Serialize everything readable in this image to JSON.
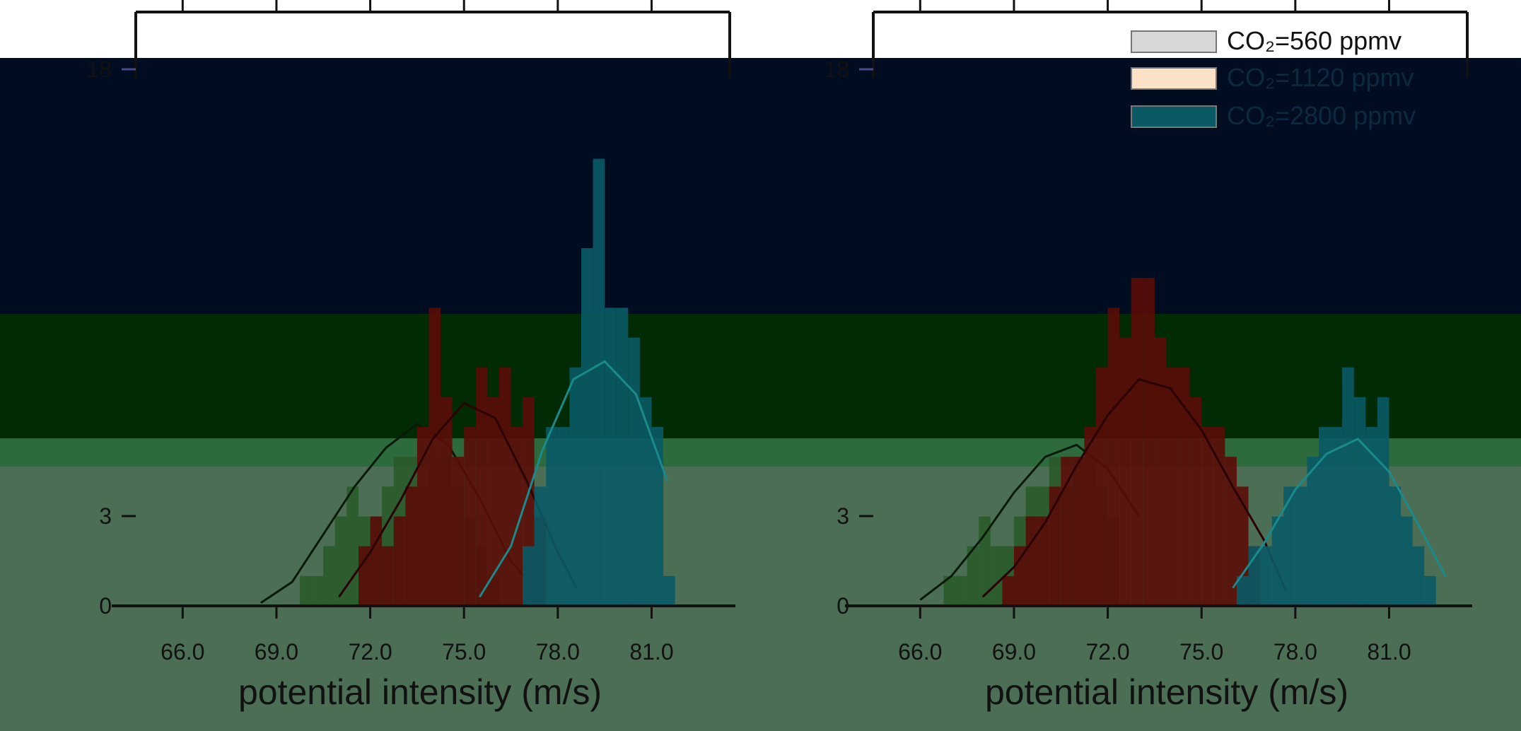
{
  "chart_data": [
    {
      "type": "bar",
      "panel": "left",
      "title": "",
      "xlabel": "potential intensity (m/s)",
      "ylabel": "",
      "xlim": [
        64.5,
        83.5
      ],
      "ylim": [
        0,
        20
      ],
      "x_ticks": [
        "66.0",
        "69.0",
        "72.0",
        "75.0",
        "78.0",
        "81.0"
      ],
      "y_ticks": [
        "0",
        "3",
        "18"
      ],
      "legend": "none",
      "bin_width": 0.375,
      "series": [
        {
          "name": "CO₂=560 ppmv",
          "color": "#2a5a2a",
          "bins": [
            [
              69.75,
              1
            ],
            [
              70.125,
              1
            ],
            [
              70.5,
              2
            ],
            [
              70.875,
              3
            ],
            [
              71.25,
              4
            ],
            [
              71.625,
              3
            ],
            [
              72.0,
              3
            ],
            [
              72.375,
              4
            ],
            [
              72.75,
              5
            ],
            [
              73.125,
              5
            ],
            [
              73.5,
              4
            ],
            [
              73.875,
              5
            ],
            [
              74.25,
              5
            ],
            [
              74.625,
              4
            ],
            [
              75.0,
              3
            ],
            [
              75.375,
              2
            ],
            [
              75.75,
              1
            ]
          ],
          "curve": [
            [
              68.5,
              0.1
            ],
            [
              69.5,
              0.8
            ],
            [
              70.5,
              2.4
            ],
            [
              71.5,
              4.0
            ],
            [
              72.5,
              5.3
            ],
            [
              73.5,
              6.1
            ],
            [
              74.5,
              5.4
            ],
            [
              75.5,
              3.6
            ],
            [
              76.5,
              1.5
            ],
            [
              77.5,
              0.3
            ]
          ]
        },
        {
          "name": "CO₂=1120 ppmv",
          "color": "#5a0c08",
          "bins": [
            [
              71.625,
              2
            ],
            [
              72.0,
              3
            ],
            [
              72.375,
              2
            ],
            [
              72.75,
              3
            ],
            [
              73.125,
              4
            ],
            [
              73.5,
              6
            ],
            [
              73.875,
              10
            ],
            [
              74.25,
              7
            ],
            [
              74.625,
              5
            ],
            [
              75.0,
              6
            ],
            [
              75.375,
              8
            ],
            [
              75.75,
              7
            ],
            [
              76.125,
              8
            ],
            [
              76.5,
              6
            ],
            [
              76.875,
              7
            ],
            [
              77.25,
              3
            ]
          ],
          "curve": [
            [
              71.0,
              0.3
            ],
            [
              72.0,
              1.8
            ],
            [
              73.0,
              3.6
            ],
            [
              74.0,
              5.6
            ],
            [
              75.0,
              6.8
            ],
            [
              76.0,
              6.3
            ],
            [
              77.0,
              4.2
            ],
            [
              78.0,
              1.8
            ],
            [
              78.6,
              0.6
            ]
          ]
        },
        {
          "name": "CO₂=2800 ppmv",
          "color": "#0a5a66",
          "bins": [
            [
              76.875,
              2
            ],
            [
              77.25,
              4
            ],
            [
              77.625,
              6
            ],
            [
              78.0,
              6
            ],
            [
              78.375,
              8
            ],
            [
              78.75,
              12
            ],
            [
              79.125,
              15
            ],
            [
              79.5,
              10
            ],
            [
              79.875,
              10
            ],
            [
              80.25,
              9
            ],
            [
              80.625,
              7
            ],
            [
              81.0,
              6
            ],
            [
              81.375,
              1
            ]
          ],
          "curve": [
            [
              75.5,
              0.3
            ],
            [
              76.5,
              2.0
            ],
            [
              77.5,
              5.2
            ],
            [
              78.5,
              7.6
            ],
            [
              79.5,
              8.2
            ],
            [
              80.5,
              7.1
            ],
            [
              81.5,
              4.2
            ]
          ]
        }
      ]
    },
    {
      "type": "bar",
      "panel": "right",
      "title": "",
      "xlabel": "potential intensity (m/s)",
      "ylabel": "",
      "xlim": [
        64.5,
        83.5
      ],
      "ylim": [
        0,
        20
      ],
      "x_ticks": [
        "66.0",
        "69.0",
        "72.0",
        "75.0",
        "78.0",
        "81.0"
      ],
      "y_ticks": [
        "0",
        "3",
        "18"
      ],
      "legend": "top-right",
      "bin_width": 0.375,
      "series": [
        {
          "name": "CO₂=560 ppmv",
          "color": "#2a5a2a",
          "bins": [
            [
              66.75,
              1
            ],
            [
              67.125,
              1
            ],
            [
              67.5,
              2
            ],
            [
              67.875,
              3
            ],
            [
              68.25,
              2
            ],
            [
              68.625,
              2
            ],
            [
              69.0,
              3
            ],
            [
              69.375,
              4
            ],
            [
              69.75,
              4
            ],
            [
              70.125,
              5
            ],
            [
              70.5,
              4
            ],
            [
              70.875,
              5
            ],
            [
              71.25,
              5
            ],
            [
              71.625,
              4
            ],
            [
              72.0,
              3
            ]
          ],
          "curve": [
            [
              66.0,
              0.2
            ],
            [
              67.0,
              1.0
            ],
            [
              68.0,
              2.3
            ],
            [
              69.0,
              3.8
            ],
            [
              70.0,
              5.0
            ],
            [
              71.0,
              5.4
            ],
            [
              72.0,
              4.6
            ],
            [
              73.0,
              3.0
            ]
          ]
        },
        {
          "name": "CO₂=1120 ppmv",
          "color": "#5a0c08",
          "bins": [
            [
              68.625,
              1
            ],
            [
              69.0,
              2
            ],
            [
              69.375,
              3
            ],
            [
              69.75,
              3
            ],
            [
              70.125,
              4
            ],
            [
              70.5,
              5
            ],
            [
              70.875,
              5
            ],
            [
              71.25,
              6
            ],
            [
              71.625,
              8
            ],
            [
              72.0,
              10
            ],
            [
              72.375,
              9
            ],
            [
              72.75,
              11
            ],
            [
              73.125,
              11
            ],
            [
              73.5,
              9
            ],
            [
              73.875,
              8
            ],
            [
              74.25,
              8
            ],
            [
              74.625,
              7
            ],
            [
              75.0,
              6
            ],
            [
              75.375,
              6
            ],
            [
              75.75,
              5
            ],
            [
              76.125,
              4
            ],
            [
              76.5,
              2
            ]
          ],
          "curve": [
            [
              68.0,
              0.3
            ],
            [
              69.0,
              1.3
            ],
            [
              70.0,
              2.8
            ],
            [
              71.0,
              4.7
            ],
            [
              72.0,
              6.4
            ],
            [
              73.0,
              7.6
            ],
            [
              74.0,
              7.3
            ],
            [
              75.0,
              5.9
            ],
            [
              76.0,
              4.0
            ],
            [
              77.0,
              2.2
            ],
            [
              77.7,
              0.5
            ]
          ]
        },
        {
          "name": "CO₂=2800 ppmv",
          "color": "#0a5a66",
          "bins": [
            [
              76.125,
              1
            ],
            [
              76.5,
              2
            ],
            [
              76.875,
              2
            ],
            [
              77.25,
              3
            ],
            [
              77.625,
              4
            ],
            [
              78.0,
              4
            ],
            [
              78.375,
              5
            ],
            [
              78.75,
              6
            ],
            [
              79.125,
              6
            ],
            [
              79.5,
              8
            ],
            [
              79.875,
              7
            ],
            [
              80.25,
              6
            ],
            [
              80.625,
              7
            ],
            [
              81.0,
              4
            ],
            [
              81.375,
              3
            ],
            [
              81.75,
              2
            ],
            [
              82.125,
              1
            ]
          ],
          "curve": [
            [
              76.0,
              0.6
            ],
            [
              77.0,
              2.1
            ],
            [
              78.0,
              3.9
            ],
            [
              79.0,
              5.1
            ],
            [
              80.0,
              5.6
            ],
            [
              81.0,
              4.5
            ],
            [
              82.0,
              2.6
            ],
            [
              82.8,
              1.0
            ]
          ]
        }
      ]
    }
  ]
}
